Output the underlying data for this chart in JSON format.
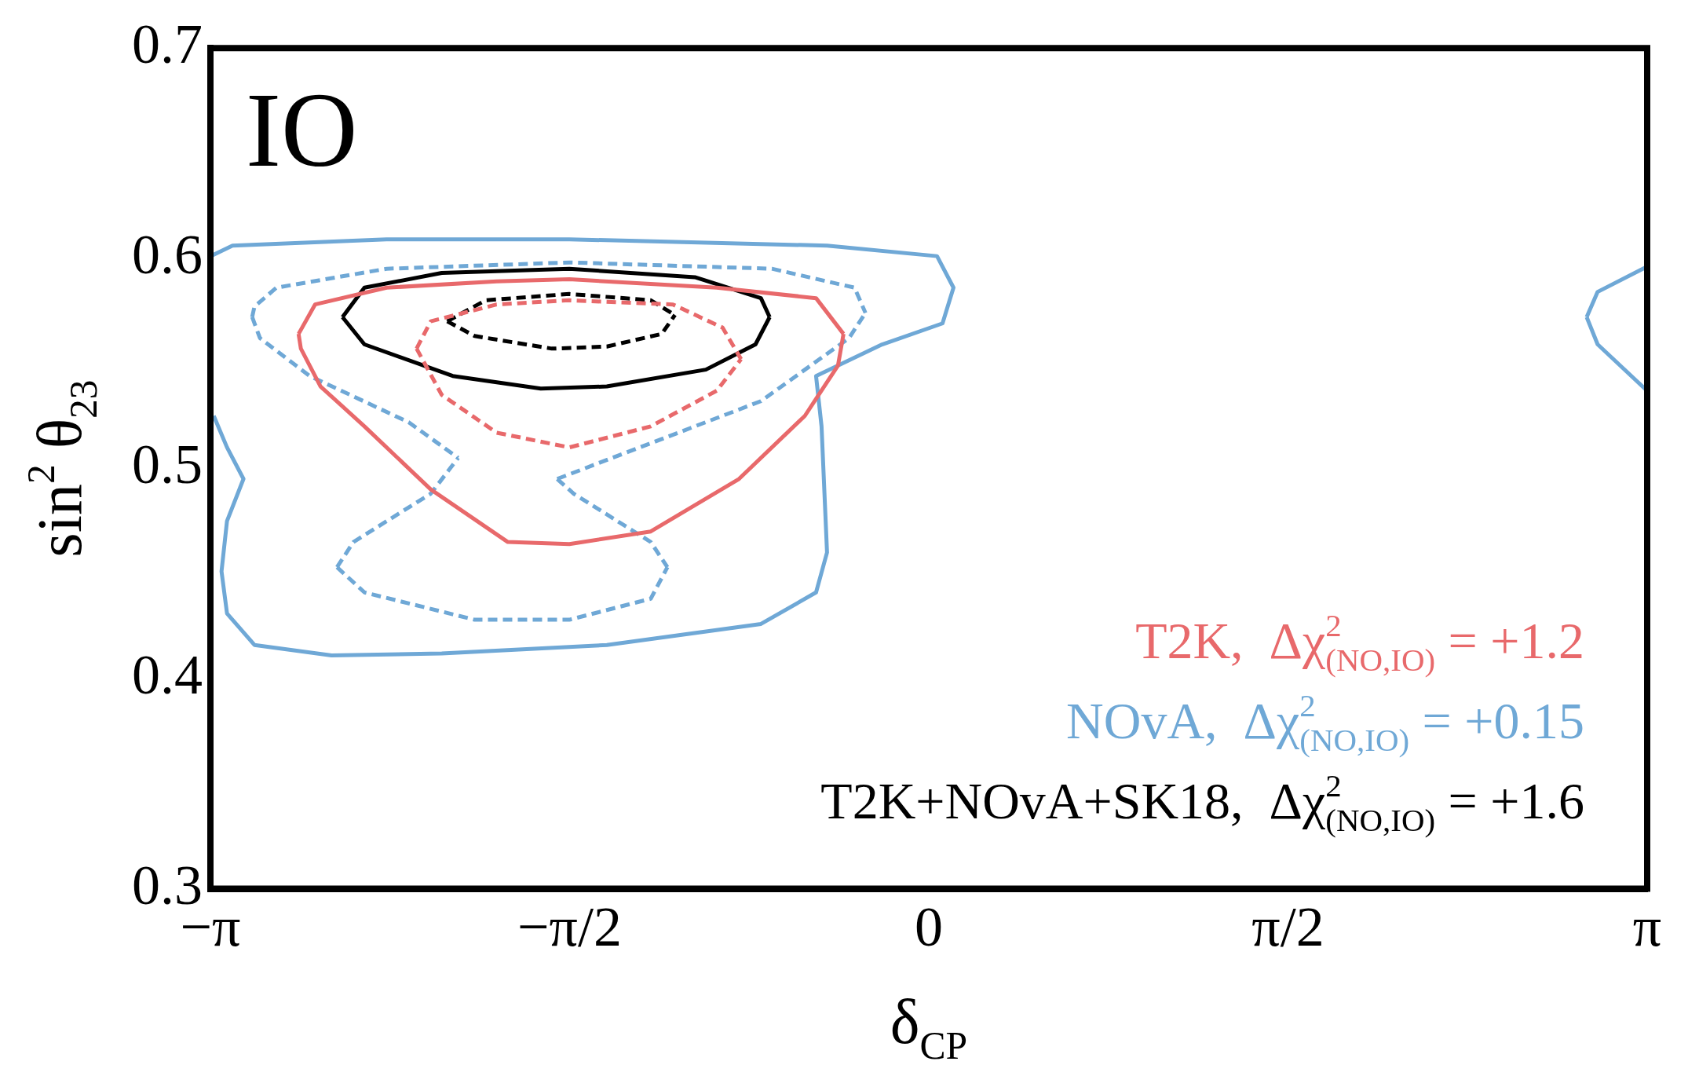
{
  "chart_data": {
    "type": "line",
    "xlabel": "δ$_{CP}$",
    "ylabel": "sin$^{2}$ θ$_{23}$",
    "annotations": [
      "IO"
    ],
    "xlim": [
      -3.1416,
      3.1416
    ],
    "xticks": [
      {
        "value": -3.1416,
        "label": "−π"
      },
      {
        "value": -1.5708,
        "label": "−π/2"
      },
      0,
      {
        "value": 1.5708,
        "label": "π/2"
      },
      {
        "value": 3.1416,
        "label": "π"
      }
    ],
    "ylim": [
      0.3,
      0.7
    ],
    "yticks": [
      0.3,
      0.4,
      0.5,
      0.6,
      0.7
    ],
    "grid": false,
    "legend": "bottom right",
    "series": [
      {
        "name": "T2K,  Δχ$^{2}$$_{(NO,IO)}$ = +1.2",
        "color": "#e8696b",
        "line_style": "solid",
        "x": [
          -2.756,
          -2.684,
          -2.371,
          -1.89,
          -1.572,
          -0.927,
          -0.493,
          -0.373
        ],
        "values": [
          0.564,
          0.578,
          0.586,
          0.589,
          0.59,
          0.586,
          0.581,
          0.564
        ]
      },
      {
        "color": "#e8696b",
        "line_style": "solid",
        "x": [
          -2.756,
          -2.746,
          -2.66,
          -2.468,
          -2.178,
          -1.841,
          -1.572,
          -1.216,
          -0.83,
          -0.542,
          -0.397,
          -0.373
        ],
        "values": [
          0.564,
          0.557,
          0.539,
          0.52,
          0.49,
          0.465,
          0.464,
          0.47,
          0.495,
          0.525,
          0.549,
          0.564
        ]
      },
      {
        "color": "#e8696b",
        "line_style": "dashed",
        "x": [
          -2.24,
          -2.178,
          -1.89,
          -1.572,
          -1.119,
          -0.902,
          -0.821
        ],
        "values": [
          0.557,
          0.57,
          0.578,
          0.58,
          0.578,
          0.567,
          0.552
        ]
      },
      {
        "color": "#e8696b",
        "line_style": "dashed",
        "x": [
          -2.24,
          -2.13,
          -1.89,
          -1.572,
          -1.216,
          -0.927,
          -0.821
        ],
        "values": [
          0.557,
          0.535,
          0.517,
          0.51,
          0.52,
          0.537,
          0.552
        ]
      },
      {
        "name": "NOvA,  Δχ$^{2}$$_{(NO,IO)}$ = +0.15",
        "color": "#6fa8d6",
        "line_style": "solid",
        "x": [
          -3.141,
          -3.045,
          -2.371,
          -1.572,
          -0.445,
          0.036,
          0.108,
          0.06,
          -0.204,
          -0.493,
          -0.469,
          -0.445,
          -0.493,
          -0.734,
          -1.408,
          -2.13,
          -2.612,
          -2.949,
          -3.069,
          -3.093,
          -3.069,
          -2.997,
          -3.069,
          -3.127
        ],
        "values": [
          0.601,
          0.606,
          0.609,
          0.609,
          0.606,
          0.601,
          0.586,
          0.569,
          0.559,
          0.544,
          0.52,
          0.46,
          0.441,
          0.426,
          0.416,
          0.412,
          0.411,
          0.416,
          0.431,
          0.451,
          0.475,
          0.495,
          0.51,
          0.525
        ]
      },
      {
        "color": "#6fa8d6",
        "line_style": "solid",
        "x": [
          2.877,
          2.925,
          3.141
        ],
        "values": [
          0.572,
          0.584,
          0.596
        ]
      },
      {
        "color": "#6fa8d6",
        "line_style": "solid",
        "x": [
          2.877,
          2.925,
          3.141
        ],
        "values": [
          0.572,
          0.559,
          0.537
        ]
      },
      {
        "color": "#6fa8d6",
        "line_style": "dashed",
        "x": [
          -2.959,
          -2.949,
          -2.853,
          -2.371,
          -1.572,
          -0.686,
          -0.325,
          -0.277
        ],
        "values": [
          0.572,
          0.577,
          0.586,
          0.595,
          0.598,
          0.595,
          0.586,
          0.574
        ]
      },
      {
        "color": "#6fa8d6",
        "line_style": "dashed",
        "x": [
          -1.625,
          -1.216,
          -0.734,
          -0.349,
          -0.277
        ],
        "values": [
          0.495,
          0.512,
          0.532,
          0.562,
          0.574
        ]
      },
      {
        "color": "#6fa8d6",
        "line_style": "dashed",
        "x": [
          -1.625,
          -1.553,
          -1.216,
          -1.143
        ],
        "values": [
          0.495,
          0.488,
          0.465,
          0.453
        ]
      },
      {
        "color": "#6fa8d6",
        "line_style": "dashed",
        "x": [
          -2.588,
          -2.468,
          -1.986,
          -1.572,
          -1.216,
          -1.143
        ],
        "values": [
          0.453,
          0.441,
          0.428,
          0.428,
          0.438,
          0.453
        ]
      },
      {
        "color": "#6fa8d6",
        "line_style": "dashed",
        "x": [
          -2.588,
          -2.516,
          -2.178,
          -2.058
        ],
        "values": [
          0.453,
          0.465,
          0.488,
          0.505
        ]
      },
      {
        "color": "#6fa8d6",
        "line_style": "dashed",
        "x": [
          -2.959,
          -2.925,
          -2.708,
          -2.275,
          -2.058
        ],
        "values": [
          0.572,
          0.562,
          0.544,
          0.522,
          0.505
        ]
      },
      {
        "name": "T2K+NOvA+SK18,  Δχ$^{2}$$_{(NO,IO)}$ = +1.6",
        "color": "#000000",
        "line_style": "solid",
        "x": [
          -2.564,
          -2.468,
          -2.13,
          -1.572,
          -1.023,
          -0.734,
          -0.696
        ],
        "values": [
          0.572,
          0.586,
          0.593,
          0.595,
          0.591,
          0.581,
          0.572
        ]
      },
      {
        "color": "#000000",
        "line_style": "solid",
        "x": [
          -2.564,
          -2.468,
          -2.082,
          -1.697,
          -1.408,
          -0.975,
          -0.758,
          -0.696
        ],
        "values": [
          0.572,
          0.559,
          0.544,
          0.538,
          0.539,
          0.547,
          0.559,
          0.572
        ]
      },
      {
        "color": "#000000",
        "line_style": "dashed",
        "x": [
          -2.106,
          -1.938,
          -1.572,
          -1.216,
          -1.11
        ],
        "values": [
          0.57,
          0.58,
          0.583,
          0.58,
          0.573
        ]
      },
      {
        "color": "#000000",
        "line_style": "dashed",
        "x": [
          -2.106,
          -1.986,
          -1.649,
          -1.408,
          -1.168,
          -1.11
        ],
        "values": [
          0.57,
          0.563,
          0.557,
          0.558,
          0.564,
          0.573
        ]
      }
    ]
  }
}
